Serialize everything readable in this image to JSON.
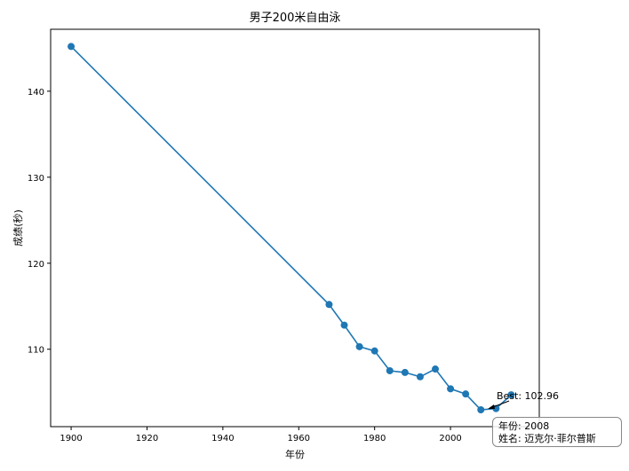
{
  "chart_data": {
    "type": "line",
    "title": "男子200米自由泳",
    "xlabel": "年份",
    "ylabel": "成绩(秒)",
    "xlim": [
      1894.6,
      2023.4
    ],
    "ylim": [
      101.0,
      147.2
    ],
    "xticks": [
      1900,
      1920,
      1940,
      1960,
      1980,
      2000
    ],
    "yticks": [
      110,
      120,
      130,
      140
    ],
    "series": [
      {
        "color": "#1f77b4",
        "marker": "circle",
        "points": [
          {
            "x": 1900,
            "y": 145.2
          },
          {
            "x": 1968,
            "y": 115.2
          },
          {
            "x": 1972,
            "y": 112.8
          },
          {
            "x": 1976,
            "y": 110.3
          },
          {
            "x": 1980,
            "y": 109.8
          },
          {
            "x": 1984,
            "y": 107.5
          },
          {
            "x": 1988,
            "y": 107.3
          },
          {
            "x": 1992,
            "y": 106.8
          },
          {
            "x": 1996,
            "y": 107.7
          },
          {
            "x": 2000,
            "y": 105.4
          },
          {
            "x": 2004,
            "y": 104.8
          },
          {
            "x": 2008,
            "y": 102.96
          },
          {
            "x": 2012,
            "y": 103.1
          },
          {
            "x": 2016,
            "y": 104.7
          }
        ]
      }
    ],
    "annotation": {
      "text": "Best: 102.96",
      "point": {
        "x": 2008,
        "y": 102.96
      }
    },
    "tooltip": {
      "year_line": "年份: 2008",
      "name_line": "姓名: 迈克尔·菲尔普斯"
    },
    "grid": false,
    "legend": "none"
  }
}
